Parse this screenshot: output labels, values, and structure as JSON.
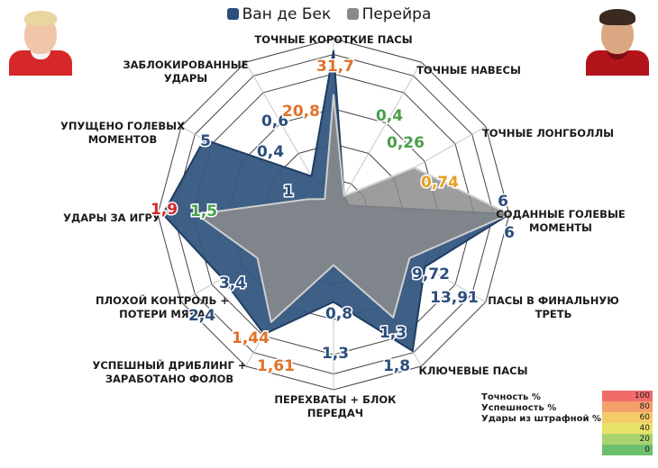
{
  "legend": {
    "items": [
      {
        "label": "Ван де Бек",
        "color": "#2d4f7c"
      },
      {
        "label": "Перейра",
        "color": "#8a8a8a"
      }
    ]
  },
  "chart_data": {
    "type": "radar",
    "axes": [
      "ТОЧНЫЕ КОРОТКИЕ ПАСЫ",
      "ТОЧНЫЕ НАВЕСЫ",
      "ТОЧНЫЕ ЛОНГБОЛЛЫ",
      "СОДАННЫЕ ГОЛЕВЫЕ МОМЕНТЫ",
      "ПАСЫ В ФИНАЛЬНУЮ ТРЕТЬ",
      "КЛЮЧЕВЫЕ ПАСЫ",
      "ПЕРЕХВАТЫ + БЛОК ПЕРЕДАЧ",
      "УСПЕШНЫЙ ДРИБЛИНГ + ЗАРАБОТАНО ФОЛОВ",
      "ПЛОХОЙ КОНТРОЛЬ + ПОТЕРИ МЯЧА",
      "УДАРЫ ЗА ИГРУ",
      "УПУЩЕНО ГОЛЕВЫХ МОМЕНТОВ",
      "ЗАБЛОКИРОВАННЫЕ УДАРЫ"
    ],
    "series": [
      {
        "name": "Ван де Бек",
        "color": "#2d4f7c",
        "values": [
          31.7,
          0.4,
          0.26,
          6,
          13.91,
          1.8,
          1.3,
          1.61,
          2.4,
          1.9,
          5,
          0.6
        ],
        "labels": [
          "31,7",
          "0,4",
          "0,26",
          "6",
          "13,91",
          "1,8",
          "1,3",
          "1,61",
          "2,4",
          "1,9",
          "5",
          "0,6"
        ],
        "label_colors": [
          "#e0702a",
          "#4aa04a",
          "#4aa04a",
          "#2d4f7c",
          "#2d4f7c",
          "#2d4f7c",
          "#2d4f7c",
          "#e0702a",
          "#2d4f7c",
          "#d42a2a",
          "#2d4f7c",
          "#2d4f7c"
        ],
        "norm": [
          0.93,
          0.12,
          0.1,
          1.0,
          0.6,
          0.9,
          0.5,
          0.79,
          0.73,
          0.97,
          0.85,
          0.25
        ]
      },
      {
        "name": "Перейра",
        "color": "#8a8a8a",
        "values": [
          20.8,
          0.4,
          0.74,
          6,
          9.72,
          1.3,
          0.8,
          1.44,
          3.4,
          1.5,
          0.4,
          1
        ],
        "labels": [
          "20,8",
          "0,4",
          "0,74",
          "6",
          "9,72",
          "1,3",
          "0,8",
          "1,44",
          "3,4",
          "1,5",
          "0,4",
          "1"
        ],
        "label_colors": [
          "#e0702a",
          "#4aa04a",
          "#e6a020",
          "#2d4f7c",
          "#2d4f7c",
          "#2d4f7c",
          "#2d4f7c",
          "#e0702a",
          "#2d4f7c",
          "#4aa04a",
          "#2d4f7c",
          "#2d4f7c"
        ],
        "norm": [
          0.68,
          0.12,
          0.53,
          1.0,
          0.5,
          0.68,
          0.29,
          0.71,
          0.5,
          0.78,
          0.17,
          0.1
        ]
      }
    ]
  },
  "scale": {
    "rows": [
      "Точность %",
      "Успешность %",
      "Удары из штрафной %"
    ],
    "levels": [
      {
        "label": "100",
        "color": "#f26b6b"
      },
      {
        "label": "80",
        "color": "#f5a06a"
      },
      {
        "label": "60",
        "color": "#f4cc6a"
      },
      {
        "label": "40",
        "color": "#e9e26a"
      },
      {
        "label": "20",
        "color": "#a9d46f"
      },
      {
        "label": "0",
        "color": "#6cbf6c"
      }
    ]
  },
  "players": {
    "left_icon": "player-photo-icon",
    "right_icon": "player-photo-icon"
  }
}
